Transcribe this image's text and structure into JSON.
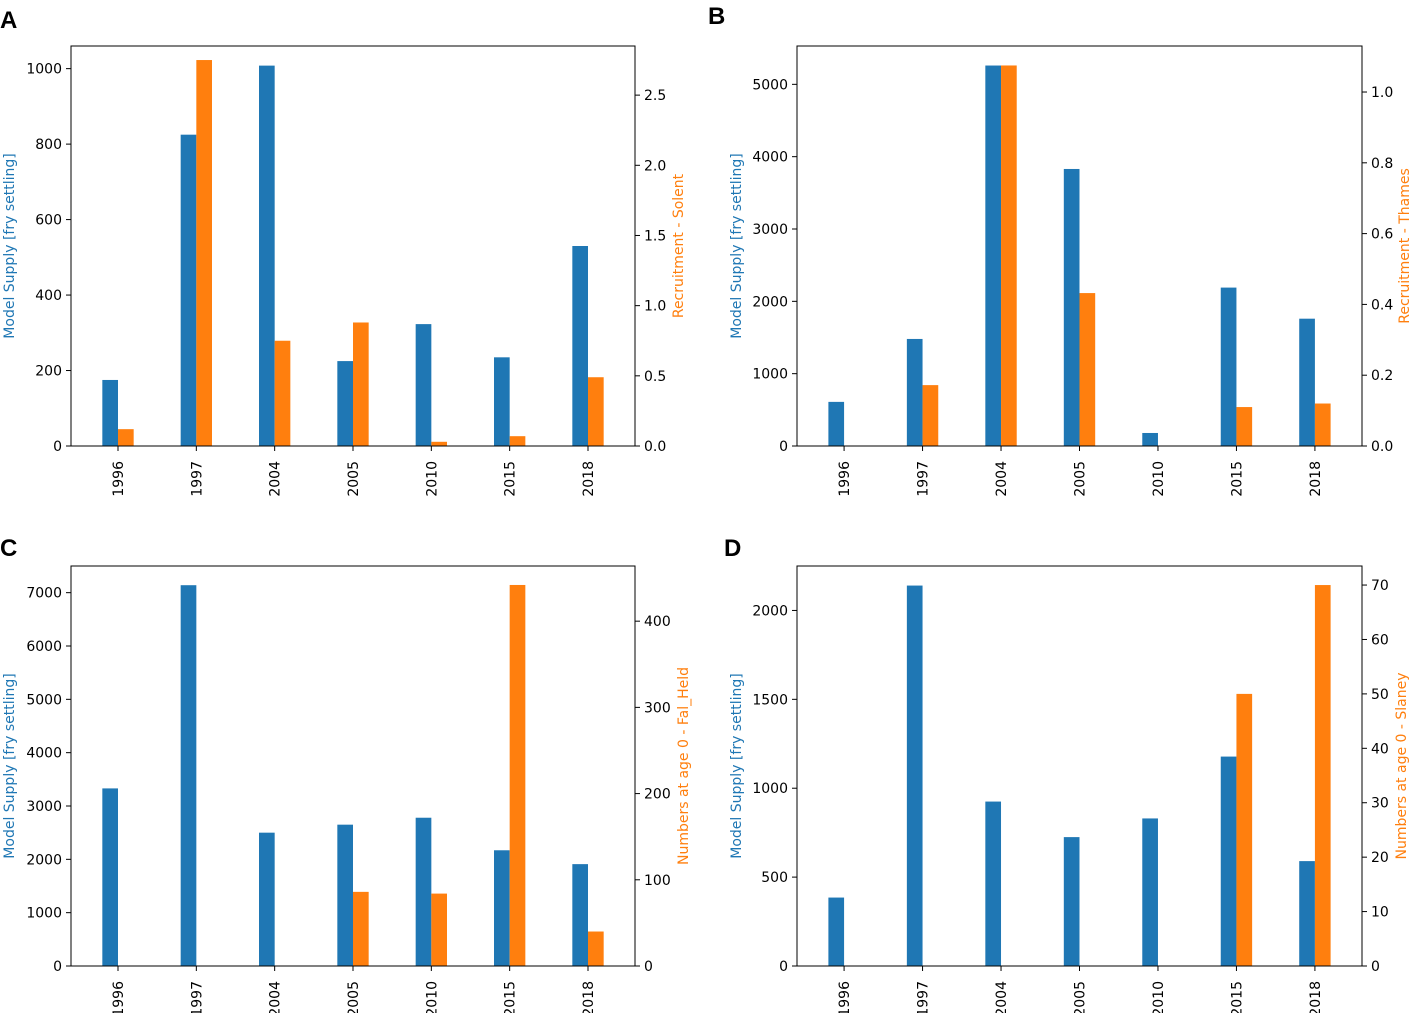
{
  "colors": {
    "supply": "#1f77b4",
    "recruit": "#ff7f0e",
    "axis": "#000000"
  },
  "chart_data": [
    {
      "type": "bar",
      "panel_label": "A",
      "categories": [
        "1996",
        "1997",
        "2004",
        "2005",
        "2010",
        "2015",
        "2018"
      ],
      "series": [
        {
          "name": "Model Supply [fry settling]",
          "axis": "left",
          "values": [
            175,
            825,
            1008,
            225,
            323,
            235,
            530
          ]
        },
        {
          "name": "Recruitment - Solent",
          "axis": "right",
          "values": [
            0.12,
            2.75,
            0.75,
            0.88,
            0.03,
            0.07,
            0.49
          ]
        }
      ],
      "ylabel": "Model Supply [fry settling]",
      "ylabel_right": "Recruitment - Solent",
      "ylim": [
        0,
        1060
      ],
      "ylim_right": [
        0,
        2.85
      ],
      "yticks": [
        0,
        200,
        400,
        600,
        800,
        1000
      ],
      "yticks_right": [
        0.0,
        0.5,
        1.0,
        1.5,
        2.0,
        2.5
      ],
      "yticks_right_labels": [
        "0.0",
        "0.5",
        "1.0",
        "1.5",
        "2.0",
        "2.5"
      ]
    },
    {
      "type": "bar",
      "panel_label": "B",
      "categories": [
        "1996",
        "1997",
        "2004",
        "2005",
        "2010",
        "2015",
        "2018"
      ],
      "series": [
        {
          "name": "Model Supply [fry settling]",
          "axis": "left",
          "values": [
            610,
            1480,
            5260,
            3830,
            180,
            2190,
            1760
          ]
        },
        {
          "name": "Recruitment - Thames",
          "axis": "right",
          "values": [
            0.0,
            0.172,
            1.075,
            0.432,
            0.0,
            0.11,
            0.12
          ]
        }
      ],
      "ylabel": "Model Supply [fry settling]",
      "ylabel_right": "Recruitment - Thames",
      "ylim": [
        0,
        5530
      ],
      "ylim_right": [
        0,
        1.13
      ],
      "yticks": [
        0,
        1000,
        2000,
        3000,
        4000,
        5000
      ],
      "yticks_right": [
        0.0,
        0.2,
        0.4,
        0.6,
        0.8,
        1.0
      ],
      "yticks_right_labels": [
        "0.0",
        "0.2",
        "0.4",
        "0.6",
        "0.8",
        "1.0"
      ]
    },
    {
      "type": "bar",
      "panel_label": "C",
      "categories": [
        "1996",
        "1997",
        "2004",
        "2005",
        "2010",
        "2015",
        "2018"
      ],
      "series": [
        {
          "name": "Model Supply [fry settling]",
          "axis": "left",
          "values": [
            3330,
            7140,
            2500,
            2650,
            2780,
            2170,
            1910
          ]
        },
        {
          "name": "Numbers at age 0 - Fal_Held",
          "axis": "right",
          "values": [
            0,
            0,
            0,
            86,
            84,
            442,
            40
          ]
        }
      ],
      "ylabel": "Model Supply [fry settling]",
      "ylabel_right": "Numbers at age 0 - Fal_Held",
      "ylim": [
        0,
        7500
      ],
      "ylim_right": [
        0,
        464
      ],
      "yticks": [
        0,
        1000,
        2000,
        3000,
        4000,
        5000,
        6000,
        7000
      ],
      "yticks_right": [
        0,
        100,
        200,
        300,
        400
      ],
      "yticks_right_labels": [
        "0",
        "100",
        "200",
        "300",
        "400"
      ]
    },
    {
      "type": "bar",
      "panel_label": "D",
      "categories": [
        "1996",
        "1997",
        "2004",
        "2005",
        "2010",
        "2015",
        "2018"
      ],
      "series": [
        {
          "name": "Model Supply [fry settling]",
          "axis": "left",
          "values": [
            385,
            2140,
            925,
            725,
            830,
            1178,
            590
          ]
        },
        {
          "name": "Numbers at age 0 - Slaney",
          "axis": "right",
          "values": [
            0,
            0,
            0,
            0,
            0,
            50,
            70
          ]
        }
      ],
      "ylabel": "Model Supply [fry settling]",
      "ylabel_right": "Numbers at age 0 - Slaney",
      "ylim": [
        0,
        2250
      ],
      "ylim_right": [
        0,
        73.5
      ],
      "yticks": [
        0,
        500,
        1000,
        1500,
        2000
      ],
      "yticks_right": [
        0,
        10,
        20,
        30,
        40,
        50,
        60,
        70
      ],
      "yticks_right_labels": [
        "0",
        "10",
        "20",
        "30",
        "40",
        "50",
        "60",
        "70"
      ]
    }
  ]
}
